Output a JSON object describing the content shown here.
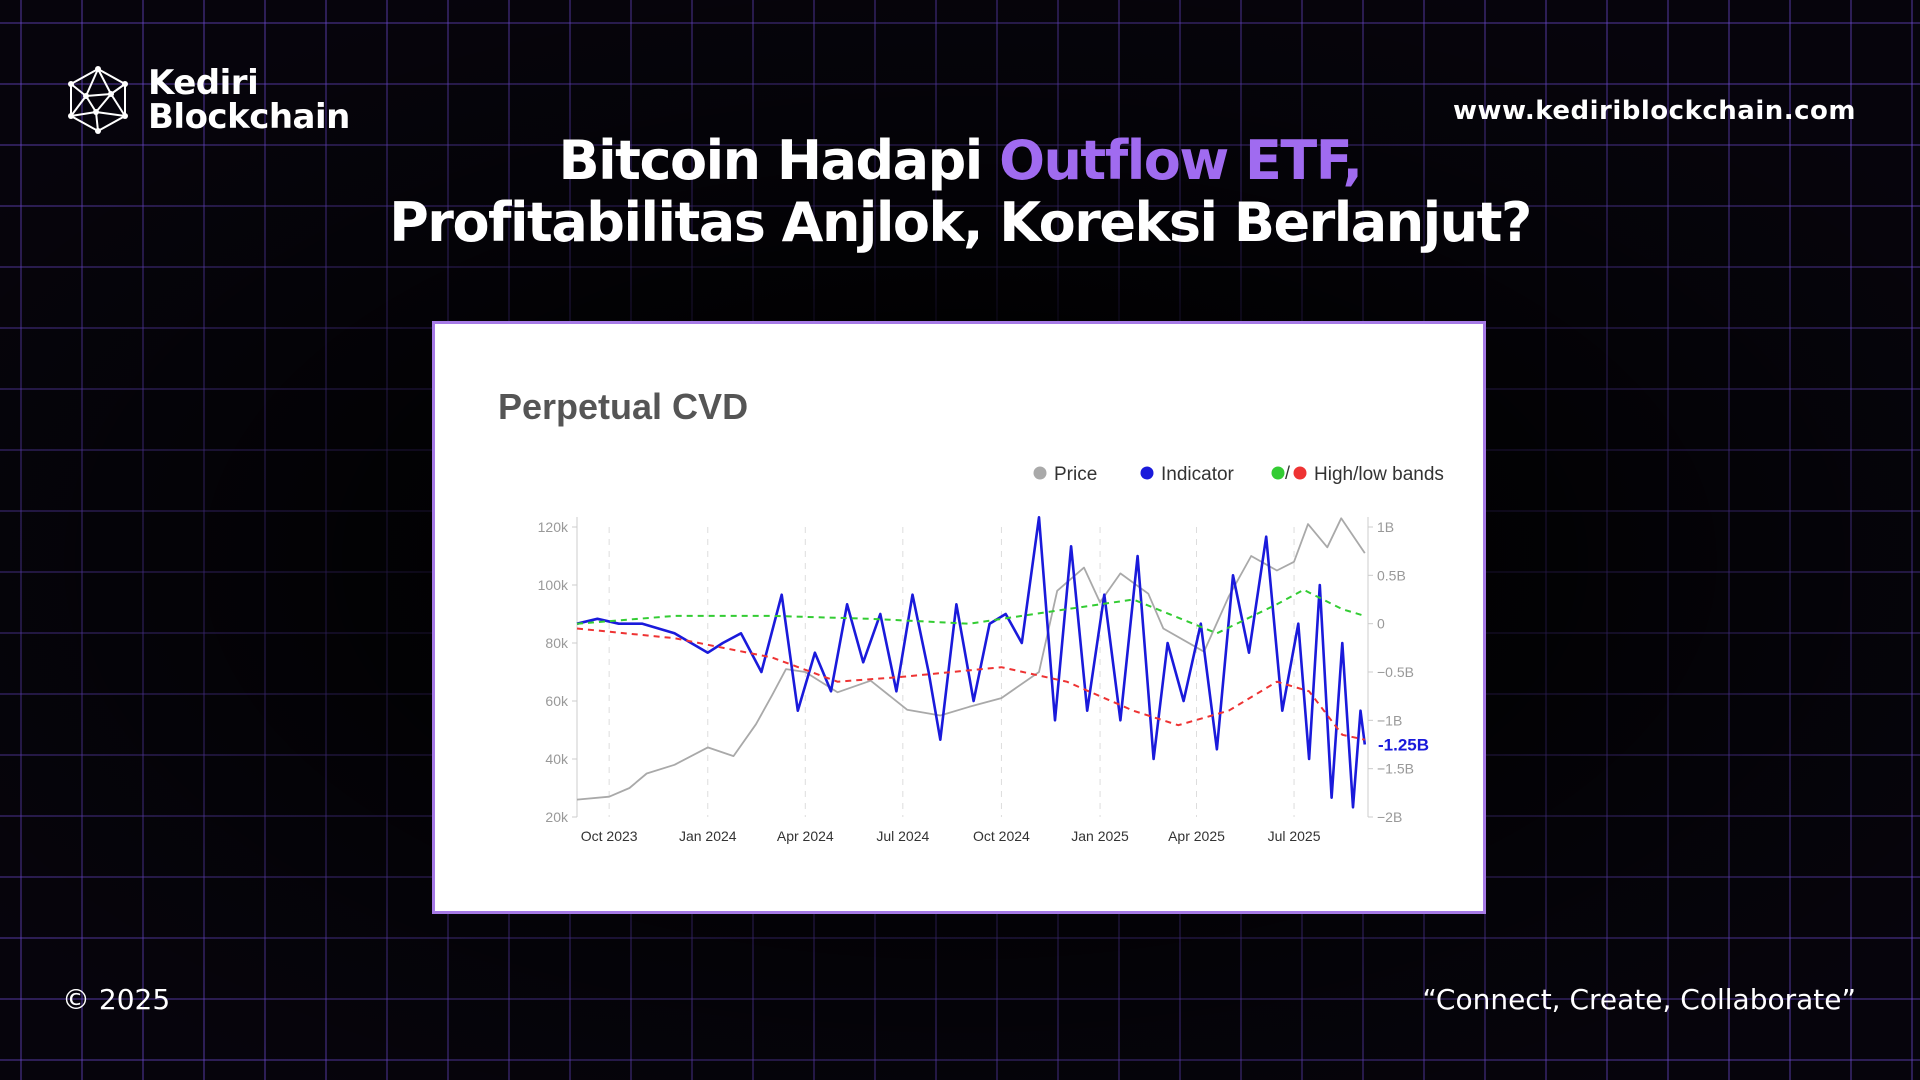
{
  "brand": {
    "name_line1": "Kediri",
    "name_line2": "Blockchain",
    "logo_icon": "geodesic-network-icon"
  },
  "site_url": "www.kediriblockchain.com",
  "headline": {
    "line1_prefix": "Bitcoin Hadapi ",
    "line1_accent": "Outflow ETF,",
    "line2": "Profitabilitas Anjlok, Koreksi Berlanjut?",
    "accent_color": "#a06bf0"
  },
  "footer": {
    "copyright": "© 2025",
    "tagline": "“Connect, Create, Collaborate”"
  },
  "chart_data": {
    "type": "line",
    "title": "Perpetual CVD",
    "legend": {
      "placement": "top-right",
      "items": [
        {
          "label": "Price",
          "colors": [
            "#a9a9a9"
          ]
        },
        {
          "label": "Indicator",
          "colors": [
            "#1a1adb"
          ]
        },
        {
          "label": "High/low bands",
          "colors": [
            "#33cc33",
            "#ee3333"
          ]
        }
      ]
    },
    "x": {
      "start": "2023-09-01",
      "end": "2025-09-08",
      "tick_labels": [
        "Oct 2023",
        "Jan 2024",
        "Apr 2024",
        "Jul 2024",
        "Oct 2024",
        "Jan 2025",
        "Apr 2025",
        "Jul 2025"
      ],
      "tick_dates": [
        "2023-10-01",
        "2024-01-01",
        "2024-04-01",
        "2024-07-01",
        "2024-10-01",
        "2025-01-01",
        "2025-04-01",
        "2025-07-01"
      ]
    },
    "y_left": {
      "ylim": [
        20000,
        120000
      ],
      "ticks": [
        120000,
        100000,
        80000,
        60000,
        40000,
        20000
      ],
      "tick_labels": [
        "120k",
        "100k",
        "80k",
        "60k",
        "40k",
        "20k"
      ]
    },
    "y_right": {
      "ylim": [
        -2000000000,
        1000000000
      ],
      "ticks": [
        1000000000,
        500000000,
        0,
        -500000000,
        -1000000000,
        -1500000000,
        -2000000000
      ],
      "tick_labels": [
        "1B",
        "0.5B",
        "0",
        "−0.5B",
        "−1B",
        "−1.5B",
        "−2B"
      ]
    },
    "grid": "vertical dashed at x ticks",
    "last_value_label": "-1.25B",
    "series": [
      {
        "name": "Price",
        "axis": "left",
        "color": "#a9a9a9",
        "dates": [
          "2023-09-01",
          "2023-10-01",
          "2023-10-20",
          "2023-11-05",
          "2023-12-01",
          "2024-01-01",
          "2024-01-25",
          "2024-02-15",
          "2024-03-01",
          "2024-03-14",
          "2024-04-01",
          "2024-05-01",
          "2024-06-01",
          "2024-07-05",
          "2024-08-05",
          "2024-09-01",
          "2024-10-01",
          "2024-11-05",
          "2024-11-22",
          "2024-12-17",
          "2025-01-01",
          "2025-01-20",
          "2025-02-15",
          "2025-03-01",
          "2025-04-08",
          "2025-05-01",
          "2025-05-22",
          "2025-06-15",
          "2025-07-01",
          "2025-07-14",
          "2025-08-01",
          "2025-08-14",
          "2025-09-05"
        ],
        "values": [
          26000,
          27000,
          30000,
          35000,
          38000,
          44000,
          41000,
          52000,
          62000,
          71000,
          70000,
          63000,
          67000,
          57000,
          55000,
          58000,
          61000,
          70000,
          98000,
          106000,
          94000,
          104000,
          97000,
          85000,
          77000,
          96000,
          110000,
          105000,
          108000,
          121000,
          113000,
          123000,
          111000
        ]
      },
      {
        "name": "Indicator",
        "axis": "right",
        "color": "#1a1adb",
        "dates": [
          "2023-09-01",
          "2023-09-20",
          "2023-10-10",
          "2023-11-01",
          "2023-12-01",
          "2024-01-01",
          "2024-01-15",
          "2024-02-01",
          "2024-02-20",
          "2024-03-10",
          "2024-03-25",
          "2024-04-10",
          "2024-04-25",
          "2024-05-10",
          "2024-05-25",
          "2024-06-10",
          "2024-06-25",
          "2024-07-10",
          "2024-07-25",
          "2024-08-05",
          "2024-08-20",
          "2024-09-05",
          "2024-09-20",
          "2024-10-05",
          "2024-10-20",
          "2024-11-05",
          "2024-11-20",
          "2024-12-05",
          "2024-12-20",
          "2025-01-05",
          "2025-01-20",
          "2025-02-05",
          "2025-02-20",
          "2025-03-05",
          "2025-03-20",
          "2025-04-05",
          "2025-04-20",
          "2025-05-05",
          "2025-05-20",
          "2025-06-05",
          "2025-06-20",
          "2025-07-05",
          "2025-07-15",
          "2025-07-25",
          "2025-08-05",
          "2025-08-15",
          "2025-08-25",
          "2025-09-01",
          "2025-09-05"
        ],
        "values": [
          0,
          50000000,
          0,
          0,
          -100000000,
          -300000000,
          -200000000,
          -100000000,
          -500000000,
          300000000,
          -900000000,
          -300000000,
          -700000000,
          200000000,
          -400000000,
          100000000,
          -700000000,
          300000000,
          -500000000,
          -1200000000,
          200000000,
          -800000000,
          0,
          100000000,
          -200000000,
          1100000000,
          -1000000000,
          800000000,
          -900000000,
          300000000,
          -1000000000,
          700000000,
          -1400000000,
          -200000000,
          -800000000,
          0,
          -1300000000,
          500000000,
          -300000000,
          900000000,
          -900000000,
          0,
          -1400000000,
          400000000,
          -1800000000,
          -200000000,
          -1900000000,
          -900000000,
          -1250000000
        ]
      },
      {
        "name": "High band",
        "axis": "right",
        "color": "#33cc33",
        "dashed": true,
        "dates": [
          "2023-09-01",
          "2023-12-01",
          "2024-03-01",
          "2024-06-01",
          "2024-09-01",
          "2024-12-01",
          "2025-02-01",
          "2025-04-20",
          "2025-06-15",
          "2025-07-10",
          "2025-08-15",
          "2025-09-05"
        ],
        "values": [
          0,
          80000000,
          80000000,
          50000000,
          0,
          150000000,
          250000000,
          -100000000,
          200000000,
          350000000,
          150000000,
          80000000
        ]
      },
      {
        "name": "Low band",
        "axis": "right",
        "color": "#ee3333",
        "dashed": true,
        "dates": [
          "2023-09-01",
          "2023-12-01",
          "2024-03-01",
          "2024-05-01",
          "2024-07-01",
          "2024-10-01",
          "2024-12-01",
          "2025-02-01",
          "2025-03-15",
          "2025-05-01",
          "2025-06-15",
          "2025-07-15",
          "2025-08-15",
          "2025-09-05"
        ],
        "values": [
          -50000000,
          -150000000,
          -350000000,
          -600000000,
          -550000000,
          -450000000,
          -600000000,
          -900000000,
          -1050000000,
          -900000000,
          -600000000,
          -700000000,
          -1150000000,
          -1200000000
        ]
      }
    ]
  }
}
